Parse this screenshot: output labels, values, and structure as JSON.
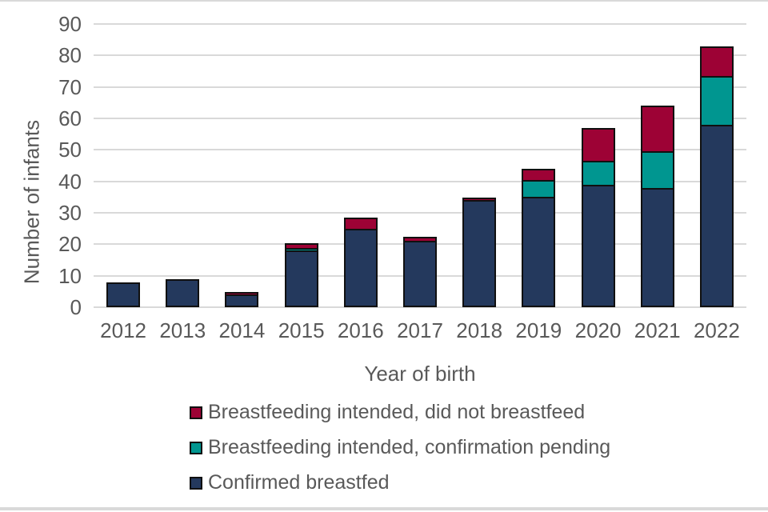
{
  "page": {
    "background": "#ffffff",
    "top_rule_color": "#d9d9d9",
    "bottom_rule_color": "#d9d9d9"
  },
  "chart_data": {
    "type": "bar",
    "stacked": true,
    "title": "",
    "xlabel": "Year of birth",
    "ylabel": "Number of infants",
    "categories": [
      "2012",
      "2013",
      "2014",
      "2015",
      "2016",
      "2017",
      "2018",
      "2019",
      "2020",
      "2021",
      "2022"
    ],
    "series": [
      {
        "name": "Confirmed breastfed",
        "color": "#24395d",
        "values": [
          8,
          9,
          4,
          18,
          25,
          21,
          34,
          35,
          39,
          38,
          58
        ]
      },
      {
        "name": "Breastfeeding intended, confirmation pending",
        "color": "#009690",
        "values": [
          0,
          0,
          0,
          1,
          0,
          0,
          0,
          6,
          8,
          12,
          16
        ]
      },
      {
        "name": "Breastfeeding intended, did not breastfeed",
        "color": "#9d0235",
        "values": [
          0,
          0,
          1,
          2,
          4,
          2,
          1,
          4,
          11,
          15,
          10
        ]
      }
    ],
    "ylim": [
      0,
      90
    ],
    "yticks": [
      0,
      10,
      20,
      30,
      40,
      50,
      60,
      70,
      80,
      90
    ],
    "grid": "horizontal",
    "gridline_color": "#d9d9d9",
    "bar_outline_color": "#101010",
    "text_color": "#595959",
    "legend_position": "bottom-left",
    "legend_order_top_to_bottom": [
      "Breastfeeding intended, did not breastfeed",
      "Breastfeeding intended, confirmation pending",
      "Confirmed breastfed"
    ]
  }
}
